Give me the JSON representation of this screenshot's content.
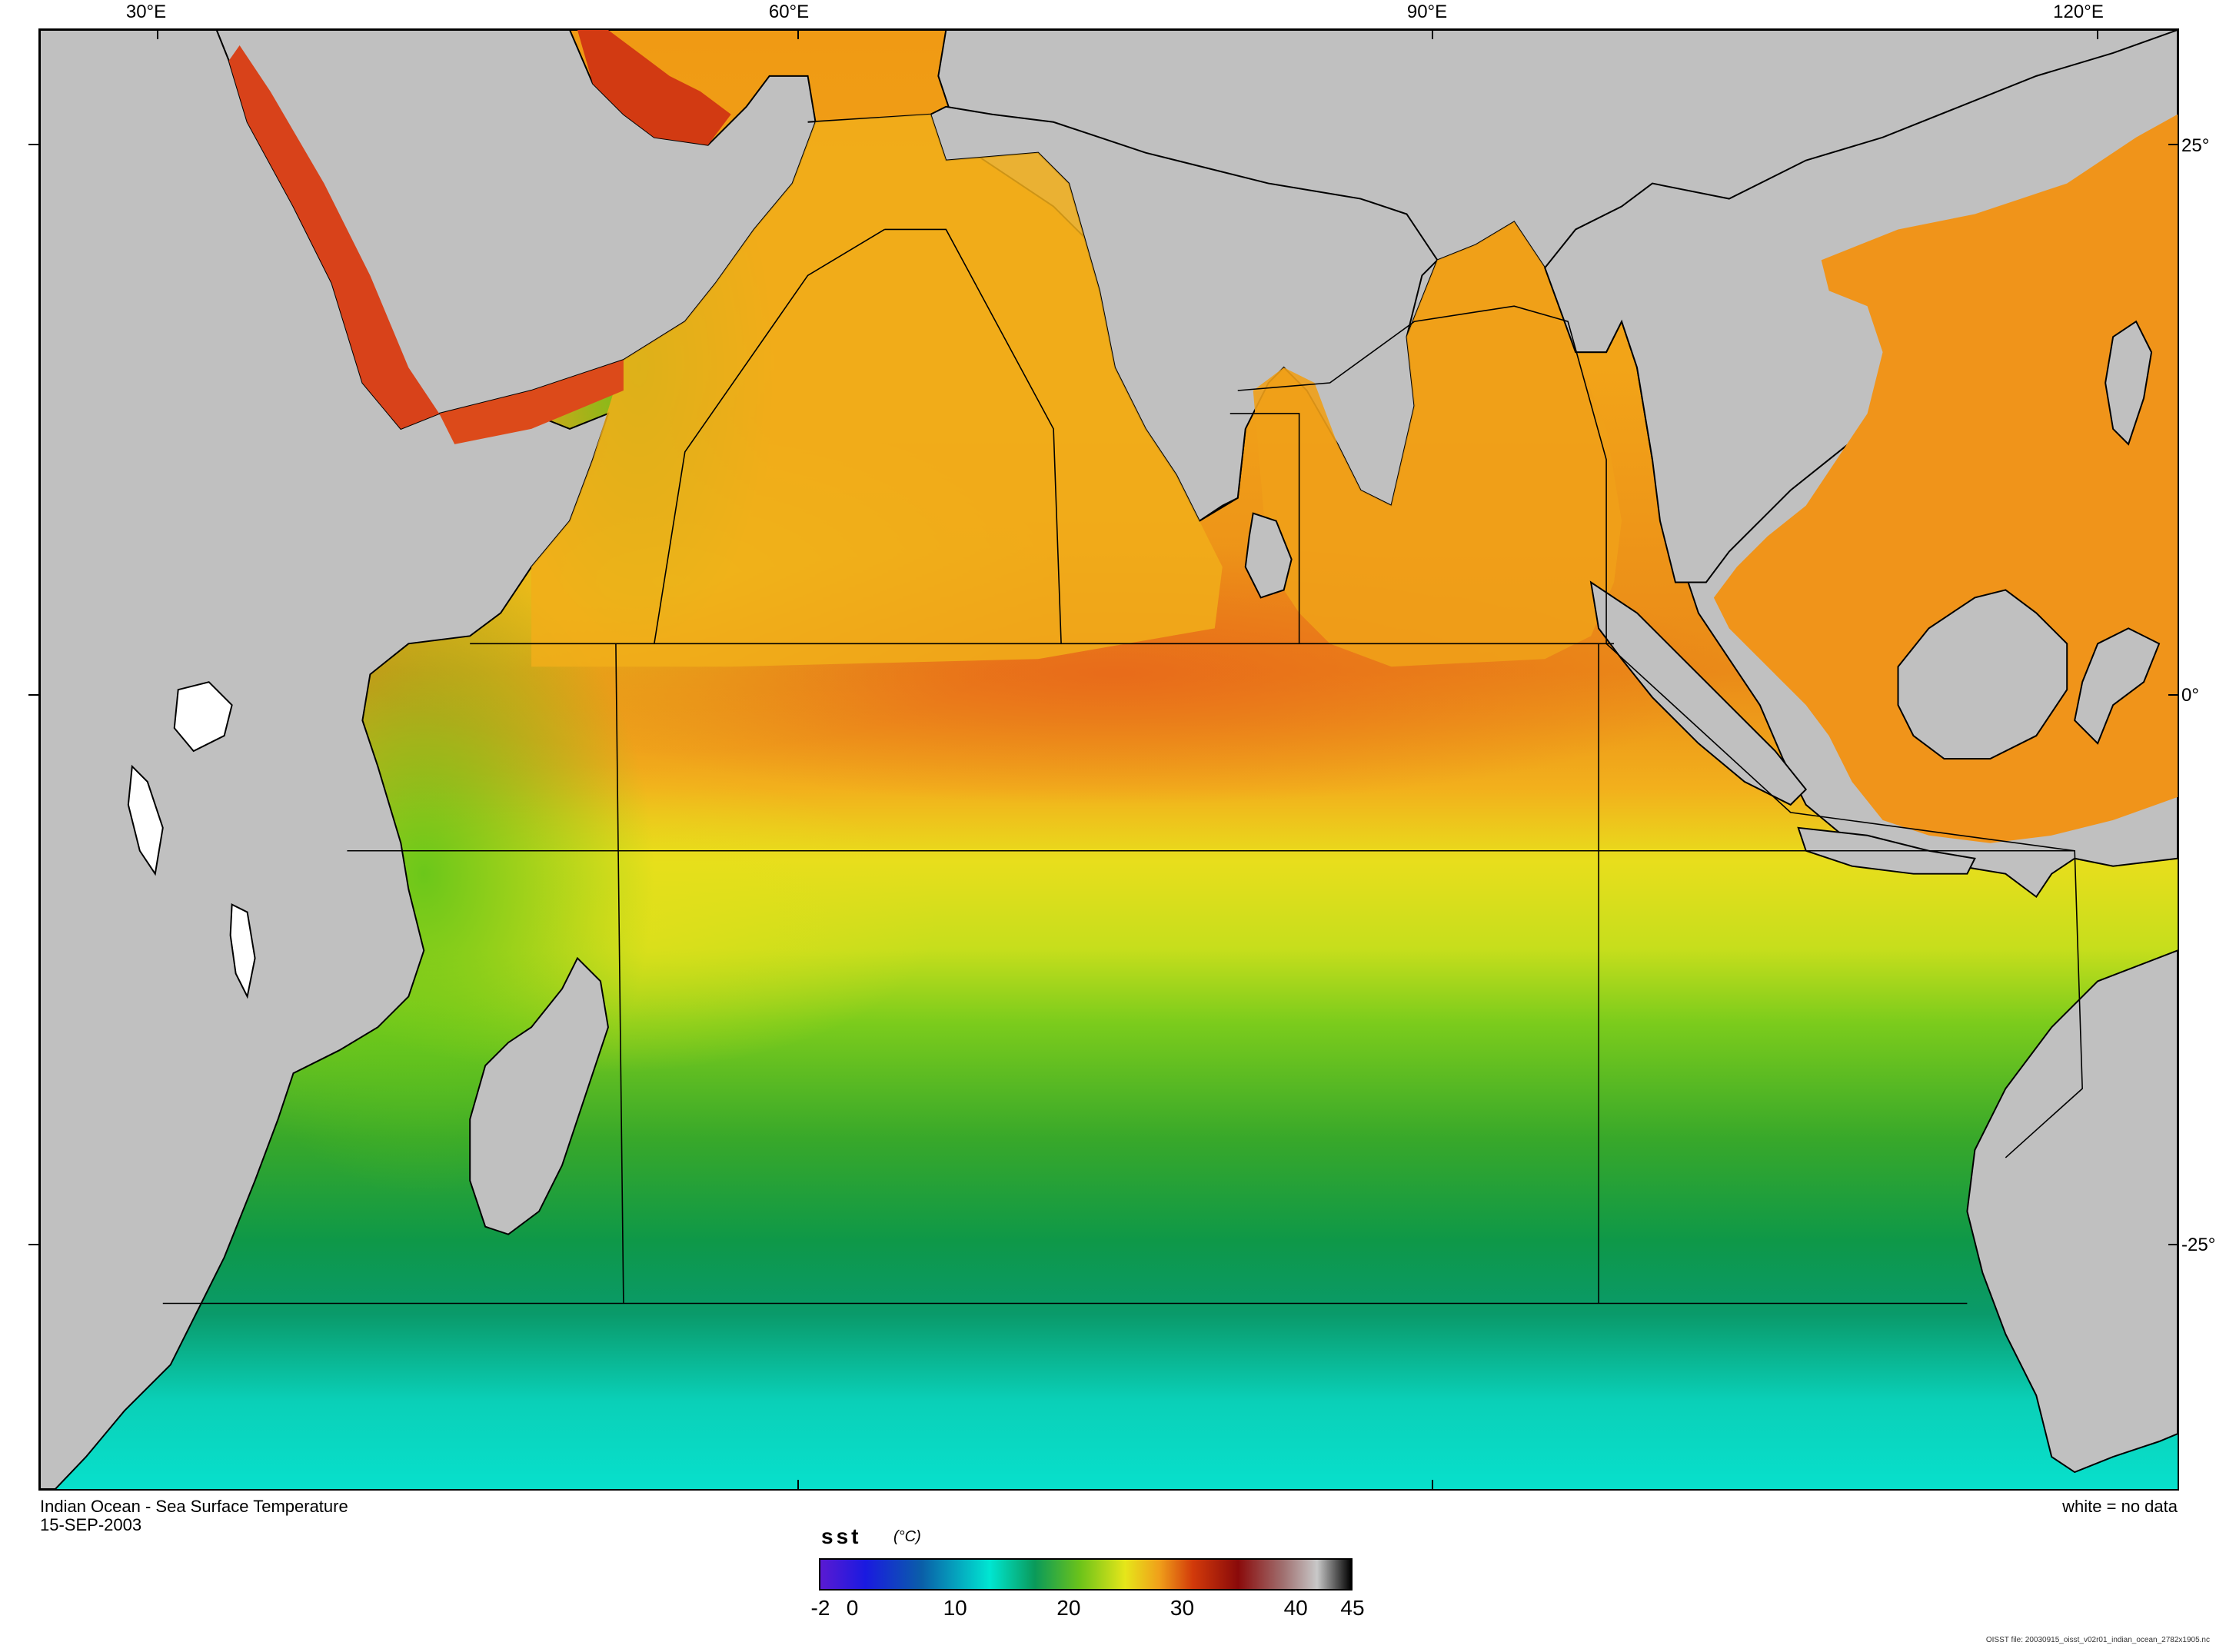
{
  "map": {
    "longitude_labels": [
      {
        "text": "30°E",
        "lon": 30
      },
      {
        "text": "60°E",
        "lon": 60
      },
      {
        "text": "90°E",
        "lon": 90
      },
      {
        "text": "120°E",
        "lon": 120
      }
    ],
    "latitude_labels": [
      {
        "text": "25°",
        "lat": 25
      },
      {
        "text": "0°",
        "lat": 0
      },
      {
        "text": "-25°",
        "lat": -25
      }
    ],
    "colors": {
      "land": "#c0c0c0",
      "coast": "#000000",
      "no_data": "#ffffff"
    }
  },
  "captions": {
    "title": "Indian Ocean - Sea Surface Temperature",
    "date": "15-SEP-2003",
    "no_data_note": "white = no data",
    "file_note": "OISST file: 20030915_oisst_v02r01_indian_ocean_2782x1905.nc"
  },
  "colorbar": {
    "variable": "sst",
    "unit": "(°C)",
    "min": -2,
    "max": 45,
    "tick_labels": [
      {
        "text": "-2",
        "value": -2
      },
      {
        "text": "0",
        "value": 0
      },
      {
        "text": "10",
        "value": 10
      },
      {
        "text": "20",
        "value": 20
      },
      {
        "text": "30",
        "value": 30
      },
      {
        "text": "40",
        "value": 40
      },
      {
        "text": "45",
        "value": 45
      }
    ],
    "stops": [
      {
        "value": -2,
        "color": "#5a1ad2"
      },
      {
        "value": 2,
        "color": "#1a1ae0"
      },
      {
        "value": 7,
        "color": "#0a5fa8"
      },
      {
        "value": 13,
        "color": "#00e6d2"
      },
      {
        "value": 17,
        "color": "#0a9a5a"
      },
      {
        "value": 21,
        "color": "#6cc31a"
      },
      {
        "value": 25,
        "color": "#e6e61a"
      },
      {
        "value": 28,
        "color": "#f0a01a"
      },
      {
        "value": 31,
        "color": "#d23a0a"
      },
      {
        "value": 35,
        "color": "#8a0a0a"
      },
      {
        "value": 39,
        "color": "#a07070"
      },
      {
        "value": 42,
        "color": "#c8c8c8"
      },
      {
        "value": 45,
        "color": "#000000"
      }
    ]
  }
}
